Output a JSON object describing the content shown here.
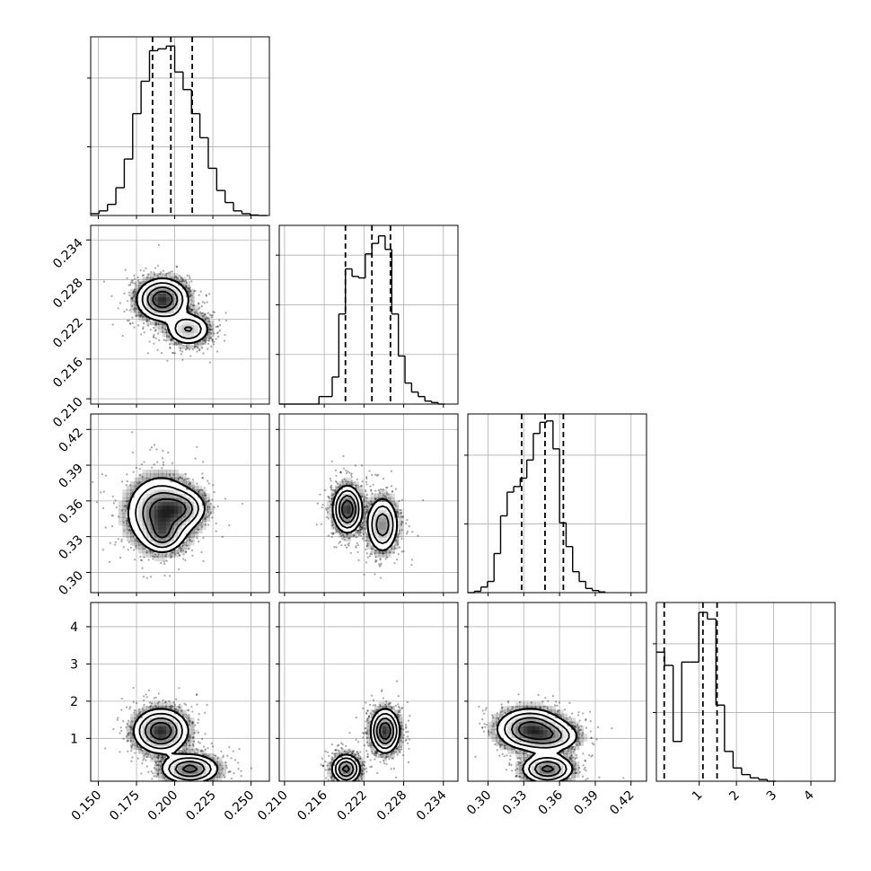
{
  "chart_data": {
    "type": "corner",
    "grid": true,
    "quantile_style": "dashed",
    "parameters": [
      {
        "range": [
          0.145,
          0.262
        ],
        "ticks": [
          0.15,
          0.175,
          0.2,
          0.225,
          0.25
        ],
        "tick_labels": [
          "0.150",
          "0.175",
          "0.200",
          "0.225",
          "0.250"
        ],
        "quantiles": [
          0.1855,
          0.1975,
          0.2115
        ],
        "hist": {
          "bins": [
            {
              "x0": 0.145,
              "x1": 0.1505,
              "h": 0.2
            },
            {
              "x0": 0.1505,
              "x1": 0.156,
              "h": 0.5
            },
            {
              "x0": 0.156,
              "x1": 0.1615,
              "h": 1.2
            },
            {
              "x0": 0.1615,
              "x1": 0.167,
              "h": 3.0
            },
            {
              "x0": 0.167,
              "x1": 0.1725,
              "h": 6.1
            },
            {
              "x0": 0.1725,
              "x1": 0.178,
              "h": 11.0
            },
            {
              "x0": 0.178,
              "x1": 0.1835,
              "h": 14.5
            },
            {
              "x0": 0.1835,
              "x1": 0.189,
              "h": 17.8
            },
            {
              "x0": 0.189,
              "x1": 0.1945,
              "h": 18.0
            },
            {
              "x0": 0.1945,
              "x1": 0.2,
              "h": 18.3
            },
            {
              "x0": 0.2,
              "x1": 0.2055,
              "h": 15.5
            },
            {
              "x0": 0.2055,
              "x1": 0.211,
              "h": 13.6
            },
            {
              "x0": 0.211,
              "x1": 0.2165,
              "h": 11.0
            },
            {
              "x0": 0.2165,
              "x1": 0.222,
              "h": 8.4
            },
            {
              "x0": 0.222,
              "x1": 0.2275,
              "h": 5.1
            },
            {
              "x0": 0.2275,
              "x1": 0.233,
              "h": 2.7
            },
            {
              "x0": 0.233,
              "x1": 0.2385,
              "h": 1.4
            },
            {
              "x0": 0.2385,
              "x1": 0.244,
              "h": 0.5
            },
            {
              "x0": 0.244,
              "x1": 0.2495,
              "h": 0.2
            },
            {
              "x0": 0.2495,
              "x1": 0.255,
              "h": 0.05
            },
            {
              "x0": 0.255,
              "x1": 0.2605,
              "h": 0.0
            }
          ],
          "ylim": [
            0,
            19.3
          ]
        }
      },
      {
        "range": [
          0.2092,
          0.2362
        ],
        "ticks": [
          0.21,
          0.216,
          0.222,
          0.228,
          0.234
        ],
        "tick_labels": [
          "0.210",
          "0.216",
          "0.222",
          "0.228",
          "0.234"
        ],
        "quantiles": [
          0.2192,
          0.2232,
          0.226
        ],
        "hist": {
          "bins": [
            {
              "x0": 0.2092,
              "x1": 0.2112,
              "h": 0.0
            },
            {
              "x0": 0.2112,
              "x1": 0.2132,
              "h": 0.0
            },
            {
              "x0": 0.2132,
              "x1": 0.2152,
              "h": 0.0
            },
            {
              "x0": 0.2152,
              "x1": 0.2172,
              "h": 0.5
            },
            {
              "x0": 0.2172,
              "x1": 0.2182,
              "h": 1.8
            },
            {
              "x0": 0.2182,
              "x1": 0.2192,
              "h": 6.0
            },
            {
              "x0": 0.2192,
              "x1": 0.2202,
              "h": 9.0
            },
            {
              "x0": 0.2202,
              "x1": 0.2212,
              "h": 8.5
            },
            {
              "x0": 0.2212,
              "x1": 0.2222,
              "h": 8.4
            },
            {
              "x0": 0.2222,
              "x1": 0.2232,
              "h": 10.0
            },
            {
              "x0": 0.2232,
              "x1": 0.2242,
              "h": 10.7
            },
            {
              "x0": 0.2242,
              "x1": 0.2252,
              "h": 11.2
            },
            {
              "x0": 0.2252,
              "x1": 0.2262,
              "h": 10.3
            },
            {
              "x0": 0.2262,
              "x1": 0.2272,
              "h": 6.0
            },
            {
              "x0": 0.2272,
              "x1": 0.2282,
              "h": 3.2
            },
            {
              "x0": 0.2282,
              "x1": 0.2292,
              "h": 1.4
            },
            {
              "x0": 0.2292,
              "x1": 0.2302,
              "h": 0.8
            },
            {
              "x0": 0.2302,
              "x1": 0.2312,
              "h": 0.5
            },
            {
              "x0": 0.2312,
              "x1": 0.2322,
              "h": 0.2
            },
            {
              "x0": 0.2322,
              "x1": 0.2332,
              "h": 0.1
            },
            {
              "x0": 0.2332,
              "x1": 0.2342,
              "h": 0.0
            }
          ],
          "ylim": [
            0,
            11.9
          ]
        }
      },
      {
        "range": [
          0.283,
          0.433
        ],
        "ticks": [
          0.3,
          0.33,
          0.36,
          0.39,
          0.42
        ],
        "tick_labels": [
          "0.30",
          "0.33",
          "0.36",
          "0.39",
          "0.42"
        ],
        "quantiles": [
          0.3282,
          0.3478,
          0.3632
        ],
        "hist": {
          "bins": [
            {
              "x0": 0.283,
              "x1": 0.2885,
              "h": 0.0
            },
            {
              "x0": 0.2885,
              "x1": 0.294,
              "h": 0.1
            },
            {
              "x0": 0.294,
              "x1": 0.2995,
              "h": 0.4
            },
            {
              "x0": 0.2995,
              "x1": 0.305,
              "h": 0.8
            },
            {
              "x0": 0.305,
              "x1": 0.3105,
              "h": 2.8
            },
            {
              "x0": 0.3105,
              "x1": 0.316,
              "h": 5.5
            },
            {
              "x0": 0.316,
              "x1": 0.3215,
              "h": 7.2
            },
            {
              "x0": 0.3215,
              "x1": 0.327,
              "h": 7.6
            },
            {
              "x0": 0.327,
              "x1": 0.3325,
              "h": 8.2
            },
            {
              "x0": 0.3325,
              "x1": 0.338,
              "h": 9.5
            },
            {
              "x0": 0.338,
              "x1": 0.3435,
              "h": 11.4
            },
            {
              "x0": 0.3435,
              "x1": 0.349,
              "h": 12.2
            },
            {
              "x0": 0.349,
              "x1": 0.3545,
              "h": 12.3
            },
            {
              "x0": 0.3545,
              "x1": 0.36,
              "h": 10.3
            },
            {
              "x0": 0.36,
              "x1": 0.3655,
              "h": 5.0
            },
            {
              "x0": 0.3655,
              "x1": 0.371,
              "h": 3.3
            },
            {
              "x0": 0.371,
              "x1": 0.3765,
              "h": 1.5
            },
            {
              "x0": 0.3765,
              "x1": 0.382,
              "h": 0.8
            },
            {
              "x0": 0.382,
              "x1": 0.3875,
              "h": 0.3
            },
            {
              "x0": 0.3875,
              "x1": 0.393,
              "h": 0.15
            },
            {
              "x0": 0.393,
              "x1": 0.3985,
              "h": 0.05
            }
          ],
          "ylim": [
            0,
            12.8
          ]
        }
      },
      {
        "range": [
          -0.15,
          4.65
        ],
        "ticks": [
          1,
          2,
          3,
          4
        ],
        "tick_labels": [
          "1",
          "2",
          "3",
          "4"
        ],
        "quantiles": [
          0.06,
          1.1,
          1.48
        ],
        "hist": {
          "bins": [
            {
              "x0": -0.15,
              "x1": 0.07,
              "h": 3.9
            },
            {
              "x0": 0.07,
              "x1": 0.3,
              "h": 3.5
            },
            {
              "x0": 0.3,
              "x1": 0.53,
              "h": 1.2
            },
            {
              "x0": 0.53,
              "x1": 0.76,
              "h": 3.6
            },
            {
              "x0": 0.76,
              "x1": 0.99,
              "h": 3.6
            },
            {
              "x0": 0.99,
              "x1": 1.22,
              "h": 5.1
            },
            {
              "x0": 1.22,
              "x1": 1.45,
              "h": 4.9
            },
            {
              "x0": 1.45,
              "x1": 1.68,
              "h": 2.3
            },
            {
              "x0": 1.68,
              "x1": 1.91,
              "h": 0.9
            },
            {
              "x0": 1.91,
              "x1": 2.14,
              "h": 0.4
            },
            {
              "x0": 2.14,
              "x1": 2.37,
              "h": 0.2
            },
            {
              "x0": 2.37,
              "x1": 2.6,
              "h": 0.1
            },
            {
              "x0": 2.6,
              "x1": 2.83,
              "h": 0.05
            },
            {
              "x0": 2.83,
              "x1": 3.06,
              "h": 0.0
            }
          ],
          "ylim": [
            0,
            5.4
          ]
        }
      }
    ],
    "density_panels": [
      {
        "row": 1,
        "col": 0,
        "modes": [
          {
            "x": 0.192,
            "y": 0.225,
            "sx": 0.0085,
            "sy": 0.0016,
            "weight": 1.0
          },
          {
            "x": 0.209,
            "y": 0.2205,
            "sx": 0.0075,
            "sy": 0.00125,
            "weight": 0.55
          }
        ]
      },
      {
        "row": 2,
        "col": 0,
        "modes": [
          {
            "x": 0.191,
            "y": 0.35,
            "sx": 0.011,
            "sy": 0.015,
            "weight": 1.0
          },
          {
            "x": 0.206,
            "y": 0.354,
            "sx": 0.008,
            "sy": 0.008,
            "weight": 0.5
          },
          {
            "x": 0.192,
            "y": 0.331,
            "sx": 0.006,
            "sy": 0.007,
            "weight": 0.45
          }
        ]
      },
      {
        "row": 2,
        "col": 1,
        "modes": [
          {
            "x": 0.2195,
            "y": 0.353,
            "sx": 0.0011,
            "sy": 0.01,
            "weight": 1.0
          },
          {
            "x": 0.2248,
            "y": 0.34,
            "sx": 0.0012,
            "sy": 0.012,
            "weight": 0.7
          }
        ]
      },
      {
        "row": 3,
        "col": 0,
        "modes": [
          {
            "x": 0.191,
            "y": 1.2,
            "sx": 0.009,
            "sy": 0.3,
            "weight": 1.0
          },
          {
            "x": 0.21,
            "y": 0.18,
            "sx": 0.0095,
            "sy": 0.2,
            "weight": 0.85
          }
        ]
      },
      {
        "row": 3,
        "col": 1,
        "modes": [
          {
            "x": 0.2252,
            "y": 1.2,
            "sx": 0.0011,
            "sy": 0.3,
            "weight": 1.0
          },
          {
            "x": 0.2193,
            "y": 0.18,
            "sx": 0.0011,
            "sy": 0.2,
            "weight": 0.85
          }
        ]
      },
      {
        "row": 3,
        "col": 2,
        "modes": [
          {
            "x": 0.335,
            "y": 1.25,
            "sx": 0.014,
            "sy": 0.28,
            "weight": 1.0
          },
          {
            "x": 0.355,
            "y": 1.05,
            "sx": 0.012,
            "sy": 0.22,
            "weight": 0.5
          },
          {
            "x": 0.35,
            "y": 0.18,
            "sx": 0.011,
            "sy": 0.2,
            "weight": 0.9
          }
        ]
      }
    ],
    "left_tick_panels": [
      {
        "row": 1,
        "param": 1
      },
      {
        "row": 2,
        "param": 2
      },
      {
        "row": 3,
        "param": 3
      }
    ]
  }
}
